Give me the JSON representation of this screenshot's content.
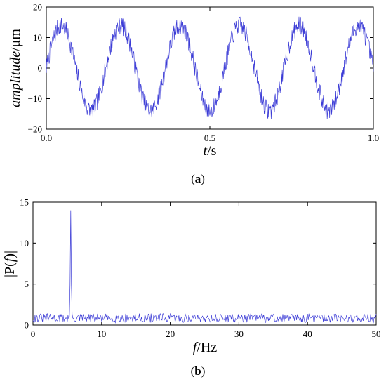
{
  "chart_data": [
    {
      "id": "a",
      "panel_label": {
        "open": "(",
        "letter": "a",
        "close": ")"
      },
      "type": "line",
      "xlabel": {
        "var": "t",
        "unit": "/s"
      },
      "ylabel": {
        "var": "amplitude",
        "unit": "/μm"
      },
      "xlim": [
        0,
        1
      ],
      "ylim": [
        -20,
        20
      ],
      "x_ticks": [
        0,
        0.5,
        1
      ],
      "x_tick_labels": [
        "0.0",
        "0.5",
        "1.0"
      ],
      "y_ticks": [
        -20,
        -10,
        0,
        10,
        20
      ],
      "y_tick_labels": [
        "−20",
        "−10",
        "0",
        "10",
        "20"
      ],
      "grid": false,
      "legend": "none",
      "line_color": "#3b3bd6",
      "signal": {
        "sine_amplitude": 14,
        "sine_frequency_hz": 5.5,
        "noise_peak": 3,
        "samples": 800
      }
    },
    {
      "id": "b",
      "panel_label": {
        "open": "(",
        "letter": "b",
        "close": ")"
      },
      "type": "line",
      "xlabel": {
        "var": "f",
        "unit": "/Hz"
      },
      "ylabel": {
        "pre": "|P(",
        "var": "f",
        "post": ")|"
      },
      "xlim": [
        0,
        50
      ],
      "ylim": [
        0,
        15
      ],
      "x_ticks": [
        0,
        10,
        20,
        30,
        40,
        50
      ],
      "x_tick_labels": [
        "0",
        "10",
        "20",
        "30",
        "40",
        "50"
      ],
      "y_ticks": [
        0,
        5,
        10,
        15
      ],
      "y_tick_labels": [
        "0",
        "5",
        "10",
        "15"
      ],
      "grid": false,
      "legend": "none",
      "line_color": "#3b3bd6",
      "spectrum": {
        "peak_frequency_hz": 5.5,
        "peak_value": 14,
        "noise_floor_range": [
          0.3,
          1.4
        ],
        "samples": 500
      }
    }
  ]
}
